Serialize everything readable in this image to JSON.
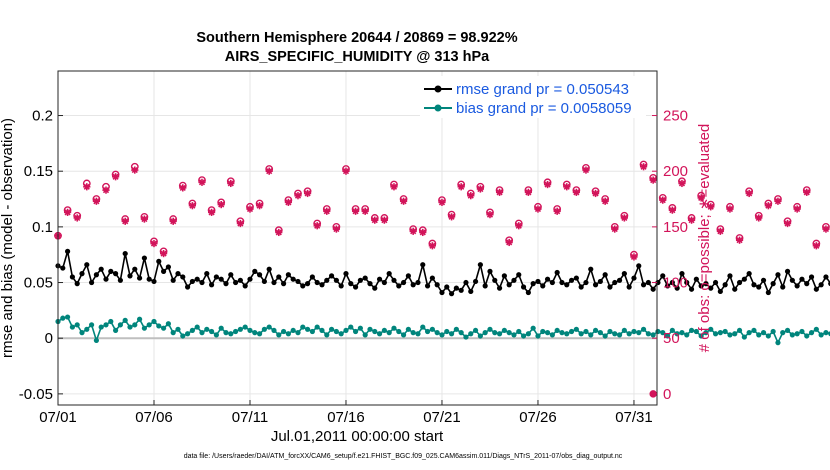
{
  "colors": {
    "rmse": "#000000",
    "bias": "#00857c",
    "obs_possible": "#d2145a",
    "obs_evaluated": "#d2145a",
    "legend_text": "#1a5ae0",
    "right_axis": "#d2145a",
    "grid": "#e6e6e6",
    "zero_line": "#bfbfbf"
  },
  "chart_data": {
    "type": "line",
    "title": "Southern Hemisphere 20644 / 20869 = 98.922%",
    "subtitle": "AIRS_SPECIFIC_HUMIDITY @ 313 hPa",
    "xlabel": "Jul.01,2011 00:00:00 start",
    "ylabel_left": "rmse and bias (model - observation)",
    "ylabel_right": "# of obs: o=possible; ∗=evaluated",
    "footnote": "data file: /Users/raeder/DAI/ATM_forcXX/CAM6_setup/f.e21.FHIST_BGC.f09_025.CAM6assim.011/Diags_NTrS_2011-07/obs_diag_output.nc",
    "xlim": [
      0,
      31.2
    ],
    "ylim_left": [
      -0.06,
      0.24
    ],
    "ylim_right": [
      -10,
      290
    ],
    "x_tick_values": [
      0,
      5,
      10,
      15,
      20,
      25,
      30
    ],
    "x_tick_labels": [
      "07/01",
      "07/06",
      "07/11",
      "07/16",
      "07/21",
      "07/26",
      "07/31"
    ],
    "y_left_ticks": [
      -0.05,
      0,
      0.05,
      0.1,
      0.15,
      0.2
    ],
    "y_left_tick_labels": [
      "-0.05",
      "0",
      "0.05",
      "0.1",
      "0.15",
      "0.2"
    ],
    "y_right_ticks": [
      0,
      50,
      100,
      150,
      200,
      250
    ],
    "y_right_tick_labels": [
      "0",
      "50",
      "100",
      "150",
      "200",
      "250"
    ],
    "grid": true,
    "legend_position": "top-right",
    "legend": [
      "rmse grand pr = 0.050543",
      "bias grand pr = 0.0058059"
    ],
    "time_step_days": 0.25,
    "series": [
      {
        "name": "rmse",
        "axis": "left",
        "values": [
          0.065,
          0.063,
          0.078,
          0.055,
          0.049,
          0.058,
          0.066,
          0.05,
          0.057,
          0.062,
          0.053,
          0.06,
          0.058,
          0.052,
          0.076,
          0.056,
          0.062,
          0.054,
          0.072,
          0.053,
          0.051,
          0.069,
          0.06,
          0.064,
          0.052,
          0.058,
          0.055,
          0.046,
          0.051,
          0.053,
          0.05,
          0.058,
          0.048,
          0.055,
          0.053,
          0.049,
          0.057,
          0.05,
          0.052,
          0.047,
          0.053,
          0.06,
          0.057,
          0.051,
          0.062,
          0.05,
          0.055,
          0.049,
          0.057,
          0.053,
          0.051,
          0.047,
          0.049,
          0.055,
          0.05,
          0.048,
          0.052,
          0.056,
          0.052,
          0.047,
          0.058,
          0.049,
          0.046,
          0.052,
          0.054,
          0.049,
          0.045,
          0.053,
          0.05,
          0.058,
          0.052,
          0.047,
          0.05,
          0.056,
          0.048,
          0.05,
          0.066,
          0.047,
          0.054,
          0.048,
          0.041,
          0.046,
          0.04,
          0.045,
          0.043,
          0.05,
          0.042,
          0.051,
          0.066,
          0.047,
          0.06,
          0.052,
          0.045,
          0.056,
          0.048,
          0.052,
          0.057,
          0.046,
          0.041,
          0.049,
          0.051,
          0.047,
          0.053,
          0.05,
          0.059,
          0.05,
          0.048,
          0.052,
          0.054,
          0.046,
          0.05,
          0.062,
          0.048,
          0.051,
          0.057,
          0.046,
          0.05,
          0.052,
          0.058,
          0.046,
          0.054,
          0.065,
          0.048,
          0.05,
          0.044,
          0.05,
          0.056,
          0.047,
          0.05,
          0.045,
          0.058,
          0.05,
          0.044,
          0.053,
          0.047,
          0.049,
          0.045,
          0.05,
          0.042,
          0.048,
          0.056,
          0.044,
          0.05,
          0.053,
          0.058,
          0.048,
          0.046,
          0.052,
          0.041,
          0.049,
          0.057,
          0.046,
          0.06,
          0.052,
          0.047,
          0.053,
          0.049,
          0.055,
          0.044,
          0.048,
          0.055,
          0.049,
          0.058,
          0.05,
          0.046,
          0.052,
          0.047,
          0.04,
          0.054,
          0.048,
          0.052,
          0.045,
          0.059,
          0.049,
          0.05,
          0.042,
          0.05,
          0.058,
          0.044,
          0.054,
          0.046,
          0.06,
          0.05,
          0.045,
          0.053,
          0.049,
          0.036,
          0.054,
          0.068,
          0.058,
          0.052,
          0.057,
          0.063,
          0.047,
          0.05,
          0.045,
          0.05,
          0.047,
          0.058,
          0.053,
          0.047,
          0.06,
          0.048,
          0.05,
          0.062,
          0.05,
          0.057,
          0.046,
          0.05,
          0.054,
          0.058,
          0.05,
          0.054,
          0.045,
          0.05,
          0.042,
          0.055,
          0.047,
          0.05,
          0.053,
          0.058,
          0.046,
          0.05,
          0.044,
          0.052,
          0.037,
          0.05,
          0.06,
          0.053,
          0.047,
          0.069,
          0.055,
          0.052,
          0.048,
          0.058,
          0.051,
          0.054,
          0.065,
          0.048,
          0.047
        ]
      },
      {
        "name": "bias",
        "axis": "left",
        "values": [
          0.015,
          0.018,
          0.019,
          0.01,
          0.012,
          0.005,
          0.008,
          0.012,
          -0.002,
          0.01,
          0.012,
          0.015,
          0.007,
          0.012,
          0.016,
          0.01,
          0.012,
          0.017,
          0.009,
          0.012,
          0.015,
          0.011,
          0.009,
          0.013,
          0.005,
          0.008,
          0.002,
          0.004,
          0.007,
          0.01,
          0.005,
          0.008,
          0.006,
          0.003,
          0.009,
          0.005,
          0.004,
          0.006,
          0.008,
          0.01,
          0.007,
          0.005,
          0.004,
          0.008,
          0.01,
          0.007,
          0.003,
          0.006,
          0.004,
          0.007,
          0.005,
          0.01,
          0.008,
          0.006,
          0.01,
          0.007,
          0.003,
          0.008,
          0.006,
          0.004,
          0.007,
          0.01,
          0.006,
          0.009,
          0.003,
          0.008,
          0.006,
          0.004,
          0.007,
          0.005,
          0.009,
          0.006,
          0.003,
          0.008,
          0.005,
          0.004,
          0.01,
          0.006,
          0.008,
          0.005,
          0.003,
          0.006,
          0.004,
          0.008,
          0.005,
          0.001,
          0.004,
          0.007,
          0.002,
          0.005,
          0.008,
          0.005,
          0.004,
          0.007,
          0.005,
          0.003,
          0.006,
          0.002,
          0.004,
          0.009,
          0.002,
          0.006,
          0.005,
          0.003,
          0.007,
          0.005,
          0.004,
          0.006,
          0.008,
          0.004,
          0.006,
          0.003,
          0.007,
          0.005,
          0.002,
          0.006,
          0.004,
          0.003,
          0.007,
          0.004,
          0.006,
          0.005,
          0.008,
          0.004,
          0.003,
          0.006,
          0.005,
          0.002,
          0.007,
          0.004,
          0.005,
          0.003,
          0.007,
          0.006,
          0.002,
          0.005,
          0.008,
          0.004,
          0.005,
          0.006,
          0.003,
          0.004,
          0.007,
          0.001,
          0.005,
          0.007,
          0.003,
          0.005,
          0.002,
          0.006,
          -0.004,
          0.005,
          0.007,
          0.003,
          0.004,
          0.006,
          0.002,
          0.005,
          0.008,
          0.003,
          0.005,
          0.004,
          0.006,
          0.003,
          0.007,
          0.004,
          0.005,
          0.002,
          0.006,
          0.004,
          0.003,
          0.005,
          0.007,
          0.004,
          0.006,
          0.003,
          0.005,
          0.002,
          0.006,
          0.004,
          0.005,
          0.008,
          0.003,
          0.005,
          0.004,
          0.006,
          0.003,
          0.005,
          0.002,
          0.006,
          0.004,
          0.007,
          0.005,
          0.003,
          0.006,
          0.004,
          0.005,
          0.002,
          0.006,
          0.004,
          0.003,
          0.005,
          0.004,
          0.006,
          0.002,
          0.005,
          0.004,
          0.003,
          0.006,
          0.004,
          0.005,
          0.002,
          0.005,
          0.004,
          0.003,
          0.005,
          0.004,
          0.006,
          0.003,
          0.005,
          0.004,
          0.006,
          0.003,
          0.001,
          0.004,
          0.003,
          0.005,
          0.002,
          0.004,
          0.006,
          0.003,
          0.01,
          0.006,
          0.009,
          0.007,
          0.008,
          0.005,
          0.009,
          0.008,
          0.007
        ]
      },
      {
        "name": "obs possible",
        "axis": "right",
        "values": [
          142,
          178,
          165,
          143,
          160,
          180,
          189,
          162,
          175,
          182,
          186,
          172,
          197,
          168,
          157,
          165,
          204,
          175,
          159,
          148,
          137,
          149,
          128,
          120,
          157,
          172,
          187,
          159,
          171,
          183,
          192,
          198,
          165,
          176,
          172,
          202,
          191,
          178,
          155,
          151,
          168,
          195,
          171,
          160,
          202,
          161,
          147,
          187,
          174,
          199,
          180,
          152,
          182,
          161,
          153,
          193,
          166,
          182,
          150,
          162,
          202,
          154,
          166,
          181,
          166,
          167,
          158,
          152,
          158,
          153,
          188,
          161,
          175,
          154,
          148,
          157,
          147,
          150,
          135,
          165,
          174,
          183,
          161,
          145,
          188,
          160,
          180,
          192,
          186,
          179,
          163,
          155,
          183,
          162,
          138,
          175,
          153,
          199,
          183,
          153,
          168,
          181,
          190,
          180,
          166,
          182,
          188,
          198,
          183,
          200,
          203,
          194,
          182,
          195,
          175,
          172,
          150,
          142,
          160,
          130,
          125,
          189,
          206,
          176,
          194,
          187,
          176,
          172,
          167,
          155,
          191,
          160,
          158,
          176,
          178,
          165,
          170,
          181,
          148,
          173,
          168,
          174,
          140,
          150,
          182,
          162,
          160,
          167,
          171,
          158,
          175,
          165,
          155,
          159,
          168,
          140,
          183,
          153,
          135,
          164,
          150,
          152,
          184,
          165,
          137,
          161,
          145,
          155,
          153,
          174,
          162,
          158,
          150,
          163,
          160,
          146,
          155,
          185,
          140,
          164,
          156,
          163,
          164,
          178,
          163,
          158,
          160,
          174,
          132,
          150,
          163,
          145,
          148,
          139,
          145,
          178,
          155,
          135,
          148,
          173,
          165,
          150,
          158,
          166,
          159,
          168,
          171,
          174,
          162,
          176,
          186,
          178,
          185,
          193,
          160,
          178,
          167,
          190,
          170,
          154,
          165,
          190,
          178,
          170,
          177,
          163,
          130,
          150,
          168,
          145,
          126,
          171,
          180,
          163,
          143,
          159,
          166,
          160,
          145,
          153
        ]
      },
      {
        "name": "obs evaluated",
        "axis": "right",
        "values": [
          142,
          175,
          163,
          141,
          158,
          178,
          186,
          160,
          173,
          180,
          183,
          170,
          195,
          166,
          155,
          163,
          201,
          173,
          157,
          146,
          135,
          147,
          126,
          118,
          155,
          170,
          185,
          157,
          169,
          181,
          190,
          196,
          163,
          174,
          170,
          200,
          189,
          176,
          153,
          149,
          166,
          193,
          169,
          158,
          200,
          159,
          145,
          185,
          172,
          197,
          178,
          150,
          180,
          159,
          151,
          191,
          164,
          180,
          148,
          160,
          200,
          152,
          164,
          179,
          164,
          165,
          156,
          150,
          156,
          151,
          186,
          159,
          173,
          152,
          146,
          155,
          145,
          148,
          133,
          163,
          172,
          181,
          159,
          143,
          186,
          158,
          178,
          190,
          184,
          177,
          161,
          153,
          181,
          160,
          136,
          173,
          151,
          197,
          181,
          151,
          166,
          179,
          188,
          178,
          164,
          180,
          186,
          196,
          181,
          198,
          201,
          192,
          180,
          193,
          173,
          170,
          148,
          140,
          158,
          128,
          123,
          187,
          204,
          174,
          192,
          185,
          174,
          170,
          165,
          153,
          189,
          158,
          156,
          174,
          176,
          163,
          168,
          179,
          146,
          171,
          166,
          172,
          138,
          148,
          180,
          160,
          158,
          165,
          169,
          156,
          173,
          163,
          153,
          157,
          166,
          138,
          181,
          151,
          133,
          162,
          148,
          150,
          182,
          163,
          135,
          159,
          143,
          153,
          151,
          172,
          160,
          156,
          148,
          161,
          158,
          144,
          153,
          183,
          138,
          162,
          154,
          161,
          162,
          176,
          161,
          156,
          158,
          172,
          130,
          148,
          161,
          143,
          146,
          137,
          143,
          176,
          153,
          133,
          146,
          171,
          163,
          148,
          156,
          164,
          157,
          166,
          169,
          172,
          160,
          174,
          184,
          176,
          183,
          191,
          158,
          176,
          165,
          188,
          168,
          152,
          163,
          188,
          176,
          168,
          175,
          161,
          128,
          148,
          166,
          143,
          124,
          169,
          178,
          161,
          141,
          157,
          164,
          158,
          143,
          151
        ]
      }
    ],
    "final_point_obs_possible": {
      "x": 31.0,
      "value": 0
    }
  }
}
